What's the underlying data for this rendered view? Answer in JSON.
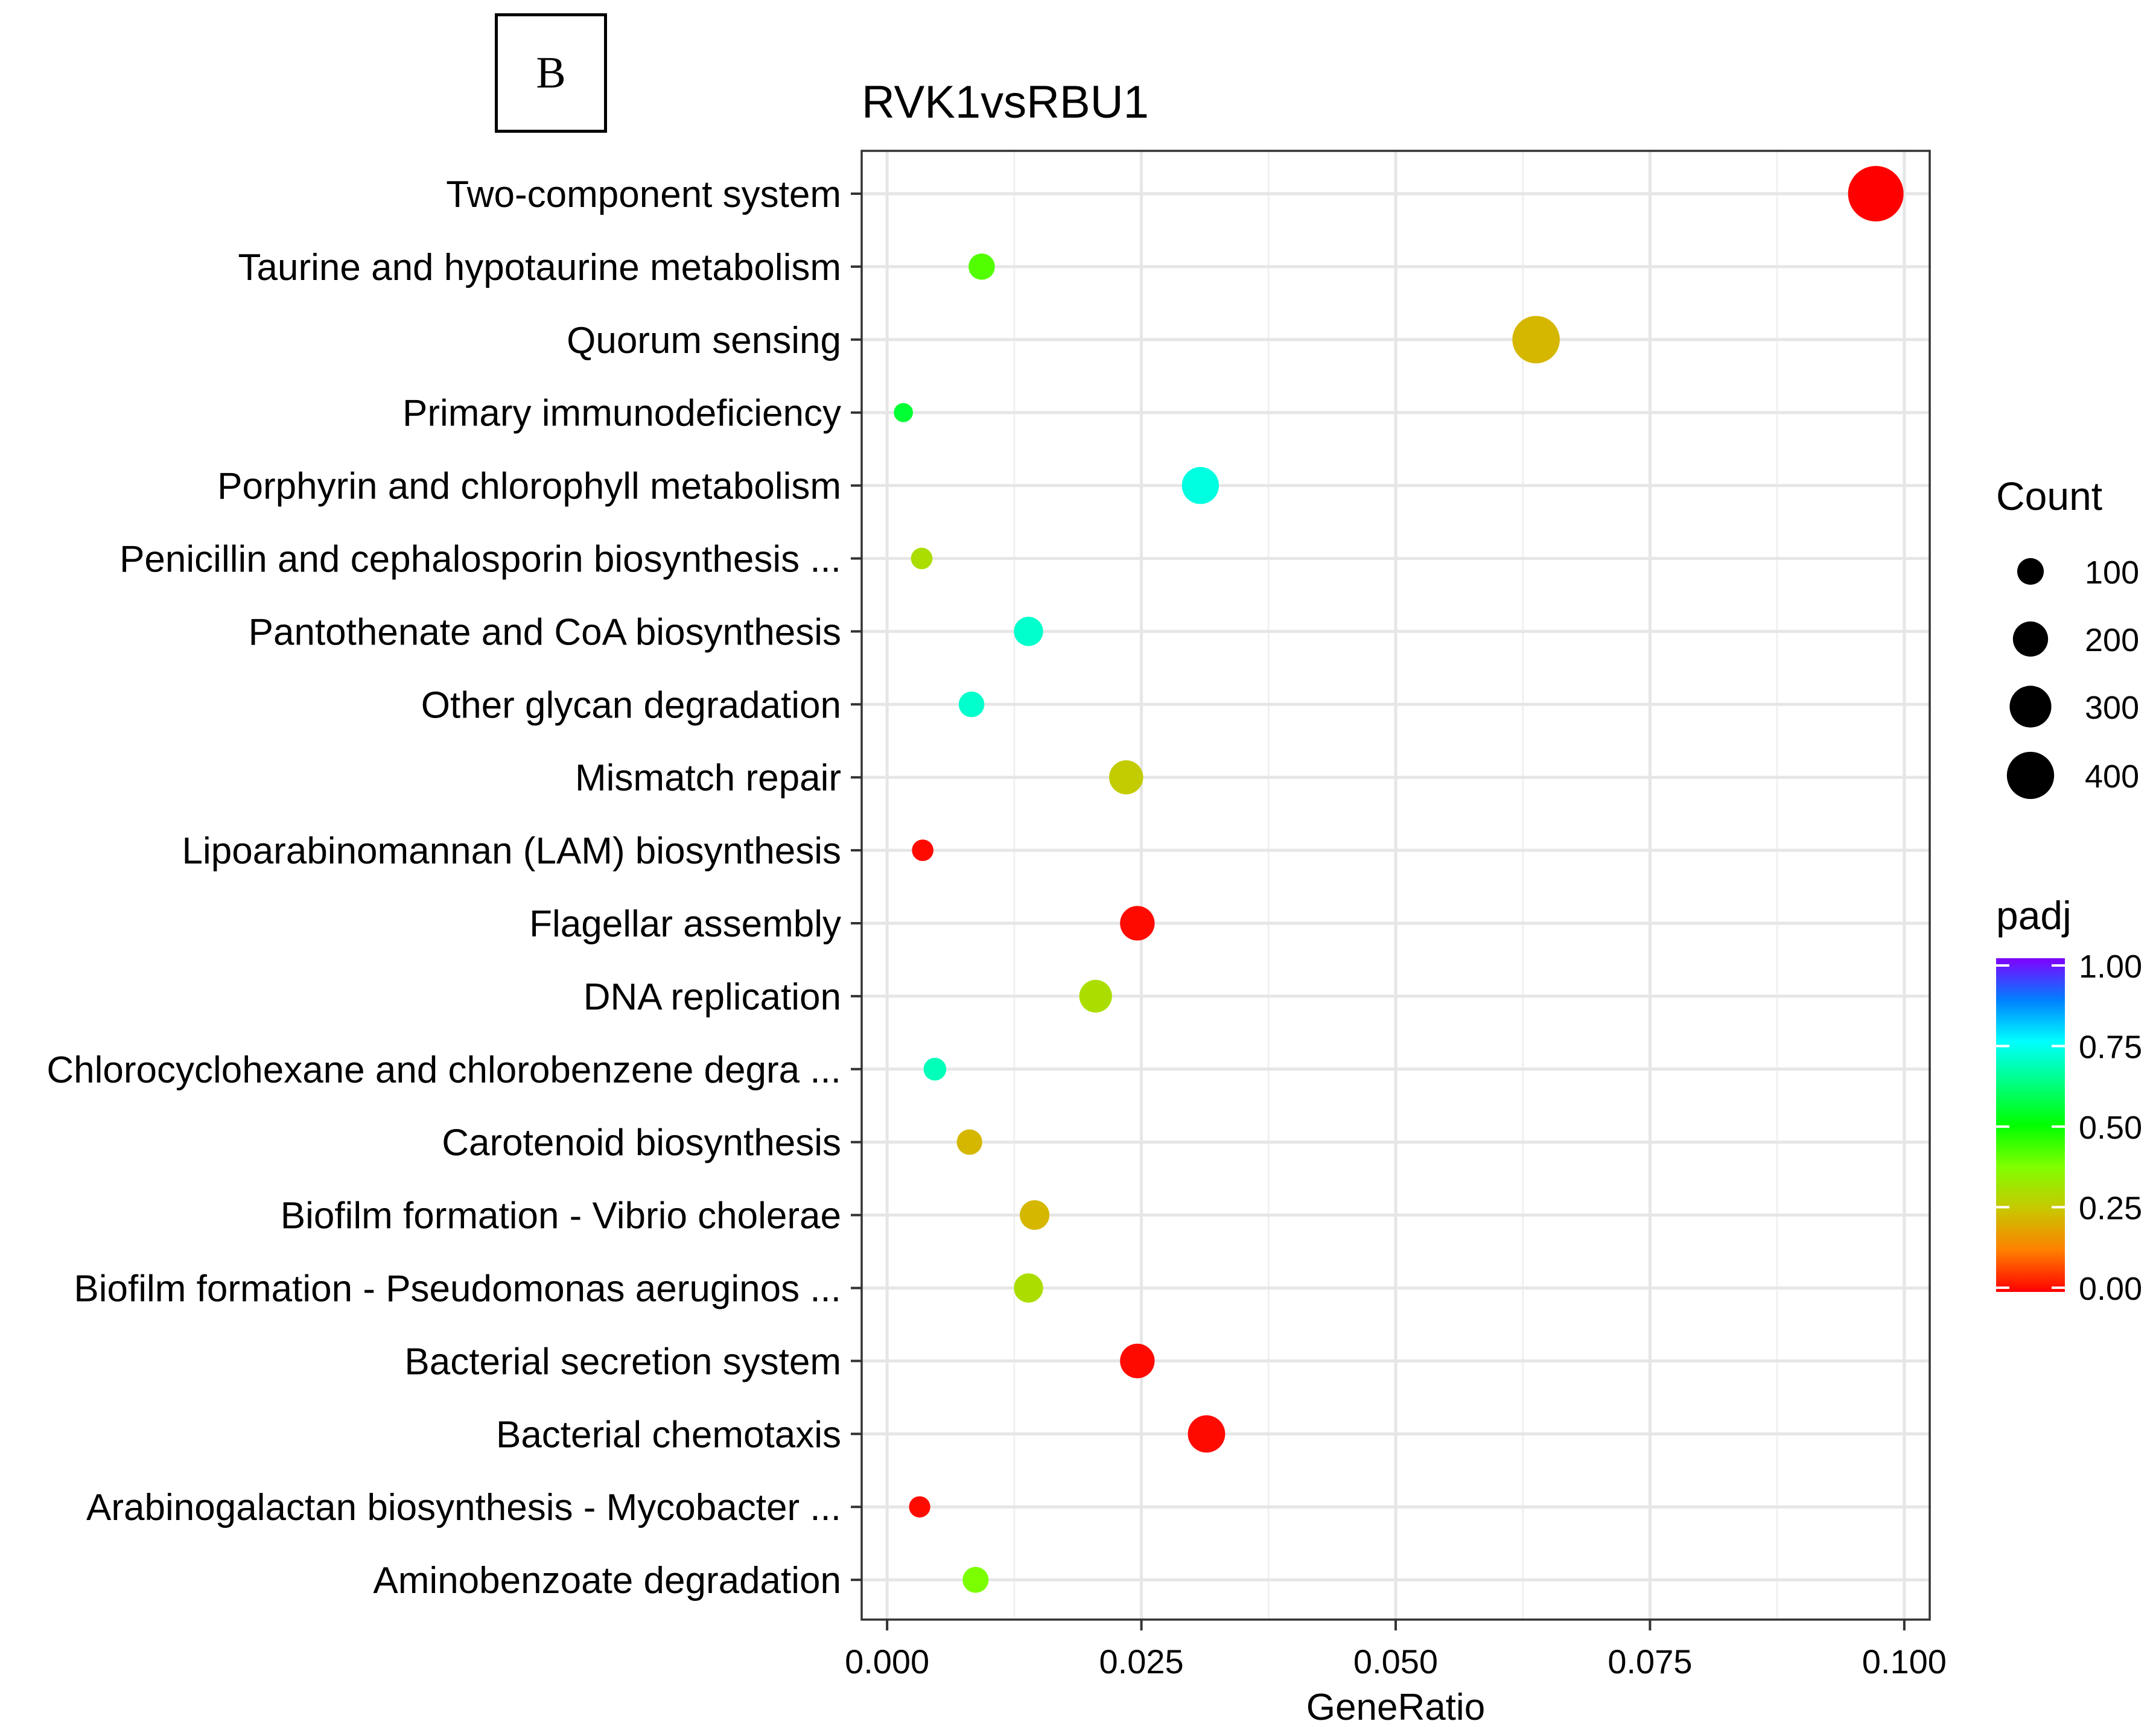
{
  "panel_label": "B",
  "chart_data": {
    "type": "scatter",
    "title": "RVK1vsRBU1",
    "xlabel": "GeneRatio",
    "ylabel": "",
    "xlim": [
      -0.0025,
      0.1025
    ],
    "x_ticks": [
      0.0,
      0.025,
      0.05,
      0.075,
      0.1
    ],
    "x_tick_labels": [
      "0.000",
      "0.025",
      "0.050",
      "0.075",
      "0.100"
    ],
    "grid": true,
    "categories": [
      "Two-component system",
      "Taurine and hypotaurine metabolism",
      "Quorum sensing",
      "Primary immunodeficiency",
      "Porphyrin and chlorophyll metabolism",
      "Penicillin and cephalosporin biosynthesis ...",
      "Pantothenate and CoA biosynthesis",
      "Other glycan degradation",
      "Mismatch repair",
      "Lipoarabinomannan (LAM) biosynthesis",
      "Flagellar assembly",
      "DNA replication",
      "Chlorocyclohexane and chlorobenzene degra ...",
      "Carotenoid biosynthesis",
      "Biofilm formation - Vibrio cholerae",
      "Biofilm formation - Pseudomonas aeruginos ...",
      "Bacterial secretion system",
      "Bacterial chemotaxis",
      "Arabinogalactan biosynthesis - Mycobacter ...",
      "Aminobenzoate degradation"
    ],
    "points": [
      {
        "term": "Two-component system",
        "gene_ratio": 0.0972,
        "count": 420,
        "padj": 0.0
      },
      {
        "term": "Taurine and hypotaurine metabolism",
        "gene_ratio": 0.0093,
        "count": 40,
        "padj": 0.42
      },
      {
        "term": "Quorum sensing",
        "gene_ratio": 0.0638,
        "count": 275,
        "padj": 0.22
      },
      {
        "term": "Primary immunodeficiency",
        "gene_ratio": 0.0016,
        "count": 8,
        "padj": 0.55
      },
      {
        "term": "Porphyrin and chlorophyll metabolism",
        "gene_ratio": 0.0308,
        "count": 133,
        "padj": 0.72
      },
      {
        "term": "Penicillin and cephalosporin biosynthesis ...",
        "gene_ratio": 0.0034,
        "count": 16,
        "padj": 0.3
      },
      {
        "term": "Pantothenate and CoA biosynthesis",
        "gene_ratio": 0.0139,
        "count": 60,
        "padj": 0.7
      },
      {
        "term": "Other glycan degradation",
        "gene_ratio": 0.0083,
        "count": 36,
        "padj": 0.7
      },
      {
        "term": "Mismatch repair",
        "gene_ratio": 0.0235,
        "count": 102,
        "padj": 0.26
      },
      {
        "term": "Lipoarabinomannan (LAM) biosynthesis",
        "gene_ratio": 0.0035,
        "count": 16,
        "padj": 0.01
      },
      {
        "term": "Flagellar assembly",
        "gene_ratio": 0.0246,
        "count": 107,
        "padj": 0.01
      },
      {
        "term": "DNA replication",
        "gene_ratio": 0.0205,
        "count": 89,
        "padj": 0.3
      },
      {
        "term": "Chlorocyclohexane and chlorobenzene degra ...",
        "gene_ratio": 0.0047,
        "count": 21,
        "padj": 0.68
      },
      {
        "term": "Carotenoid biosynthesis",
        "gene_ratio": 0.0081,
        "count": 35,
        "padj": 0.22
      },
      {
        "term": "Biofilm formation - Vibrio cholerae",
        "gene_ratio": 0.0145,
        "count": 63,
        "padj": 0.22
      },
      {
        "term": "Biofilm formation - Pseudomonas aeruginos ...",
        "gene_ratio": 0.0139,
        "count": 60,
        "padj": 0.3
      },
      {
        "term": "Bacterial secretion system",
        "gene_ratio": 0.0246,
        "count": 107,
        "padj": 0.01
      },
      {
        "term": "Bacterial chemotaxis",
        "gene_ratio": 0.0314,
        "count": 136,
        "padj": 0.01
      },
      {
        "term": "Arabinogalactan biosynthesis - Mycobacter ...",
        "gene_ratio": 0.0032,
        "count": 15,
        "padj": 0.01
      },
      {
        "term": "Aminobenzoate degradation",
        "gene_ratio": 0.0087,
        "count": 38,
        "padj": 0.38
      }
    ],
    "size_legend": {
      "title": "Count",
      "values": [
        100,
        200,
        300,
        400
      ],
      "labels": [
        "100",
        "200",
        "300",
        "400"
      ]
    },
    "color_legend": {
      "title": "padj",
      "range": [
        0.0,
        1.0
      ],
      "ticks": [
        0.0,
        0.25,
        0.5,
        0.75,
        1.0
      ],
      "tick_labels": [
        "0.00",
        "0.25",
        "0.50",
        "0.75",
        "1.00"
      ],
      "colors": [
        "#ff0000",
        "#ff8000",
        "#c8c800",
        "#80ff00",
        "#00ff00",
        "#00ff80",
        "#00ffff",
        "#0080ff",
        "#8000ff"
      ]
    }
  }
}
